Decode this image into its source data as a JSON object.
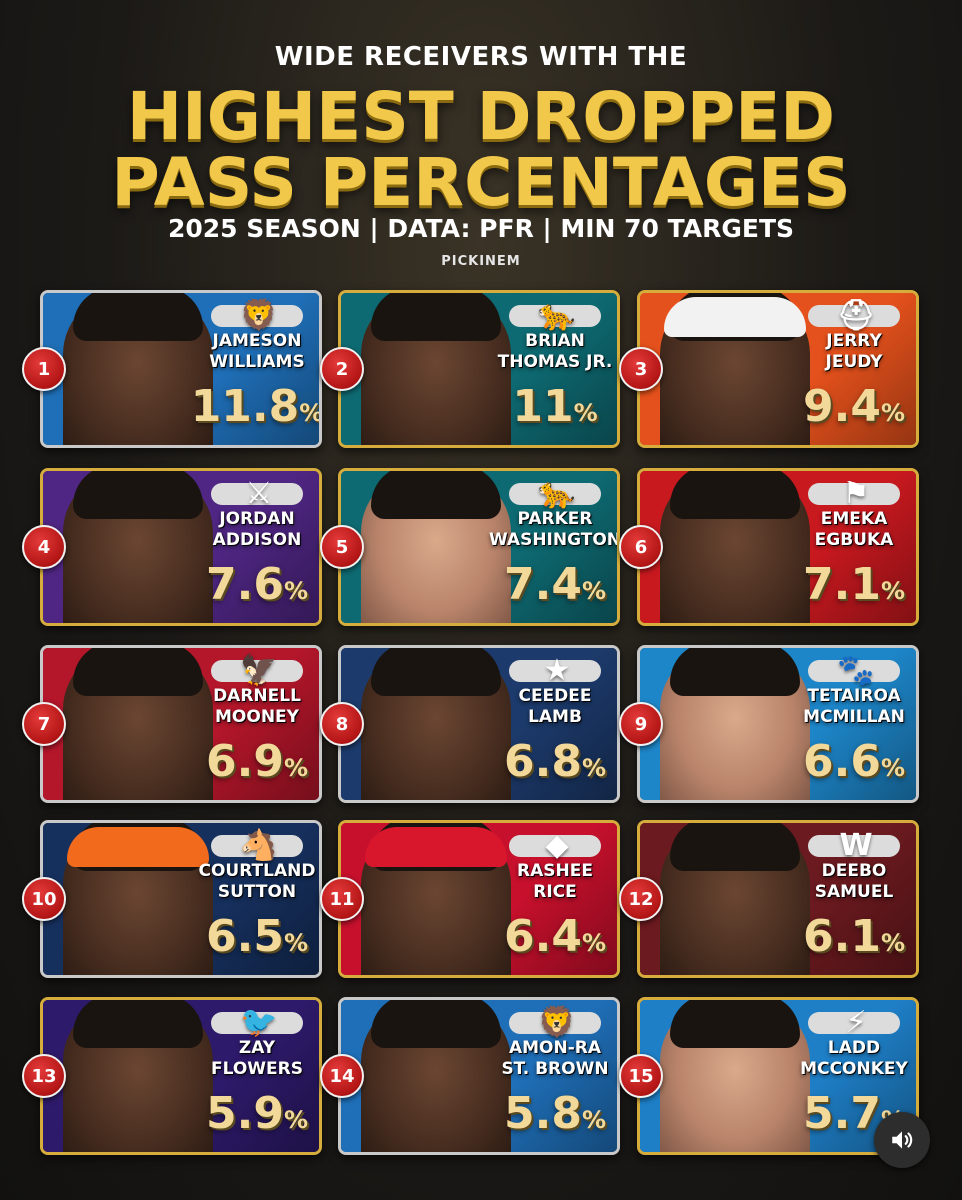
{
  "header": {
    "pretitle": "WIDE RECEIVERS WITH THE",
    "title_line1": "HIGHEST DROPPED",
    "title_line2": "PASS PERCENTAGES",
    "subtitle": "2025 SEASON | DATA: PFR | MIN 70 TARGETS",
    "brand": "PICKINEM"
  },
  "players": [
    {
      "rank": "1",
      "name1": "JAMESON",
      "name2": "WILLIAMS",
      "pct": "11.8",
      "team": "Lions",
      "color": "#1f6fb8",
      "logo_icon": "lion-logo",
      "logo_glyph": "🦁"
    },
    {
      "rank": "2",
      "name1": "BRIAN",
      "name2": "THOMAS JR.",
      "pct": "11",
      "team": "Jaguars",
      "color": "#0e6a72",
      "logo_icon": "jaguar-logo",
      "logo_glyph": "🐆"
    },
    {
      "rank": "3",
      "name1": "JERRY",
      "name2": "JEUDY",
      "pct": "9.4",
      "team": "Browns",
      "color": "#e5511c",
      "logo_icon": "helmet-logo",
      "logo_glyph": "⛑"
    },
    {
      "rank": "4",
      "name1": "JORDAN",
      "name2": "ADDISON",
      "pct": "7.6",
      "team": "Vikings",
      "color": "#4f2683",
      "logo_icon": "viking-logo",
      "logo_glyph": "⚔"
    },
    {
      "rank": "5",
      "name1": "PARKER",
      "name2": "WASHINGTON",
      "pct": "7.4",
      "team": "Jaguars",
      "color": "#0e6a72",
      "logo_icon": "jaguar-logo",
      "logo_glyph": "🐆"
    },
    {
      "rank": "6",
      "name1": "EMEKA",
      "name2": "EGBUKA",
      "pct": "7.1",
      "team": "Buccaneers",
      "color": "#c8191f",
      "logo_icon": "buccaneers-flag-logo",
      "logo_glyph": "⚑"
    },
    {
      "rank": "7",
      "name1": "DARNELL",
      "name2": "MOONEY",
      "pct": "6.9",
      "team": "Falcons",
      "color": "#b4162a",
      "logo_icon": "falcon-logo",
      "logo_glyph": "🦅"
    },
    {
      "rank": "8",
      "name1": "CEEDEE",
      "name2": "LAMB",
      "pct": "6.8",
      "team": "Cowboys",
      "color": "#1c3a6b",
      "logo_icon": "star-logo",
      "logo_glyph": "★"
    },
    {
      "rank": "9",
      "name1": "TETAIROA",
      "name2": "MCMILLAN",
      "pct": "6.6",
      "team": "Panthers",
      "color": "#1d86c9",
      "logo_icon": "panther-logo",
      "logo_glyph": "🐾"
    },
    {
      "rank": "10",
      "name1": "COURTLAND",
      "name2": "SUTTON",
      "pct": "6.5",
      "team": "Broncos",
      "color": "#16305e",
      "logo_icon": "bronco-logo",
      "logo_glyph": "🐴"
    },
    {
      "rank": "11",
      "name1": "RASHEE",
      "name2": "RICE",
      "pct": "6.4",
      "team": "Chiefs",
      "color": "#c6102c",
      "logo_icon": "arrowhead-logo",
      "logo_glyph": "◆"
    },
    {
      "rank": "12",
      "name1": "DEEBO",
      "name2": "SAMUEL",
      "pct": "6.1",
      "team": "Commanders",
      "color": "#6b1a1f",
      "logo_icon": "w-logo",
      "logo_glyph": "W"
    },
    {
      "rank": "13",
      "name1": "ZAY",
      "name2": "FLOWERS",
      "pct": "5.9",
      "team": "Ravens",
      "color": "#2e1a6b",
      "logo_icon": "raven-logo",
      "logo_glyph": "🐦"
    },
    {
      "rank": "14",
      "name1": "AMON-RA",
      "name2": "ST. BROWN",
      "pct": "5.8",
      "team": "Lions",
      "color": "#1f6fb8",
      "logo_icon": "lion-logo",
      "logo_glyph": "🦁"
    },
    {
      "rank": "15",
      "name1": "LADD",
      "name2": "MCCONKEY",
      "pct": "5.7",
      "team": "Chargers",
      "color": "#1e7fc7",
      "logo_icon": "bolt-logo",
      "logo_glyph": "⚡"
    }
  ],
  "controls": {
    "sound_icon": "speaker-icon"
  }
}
